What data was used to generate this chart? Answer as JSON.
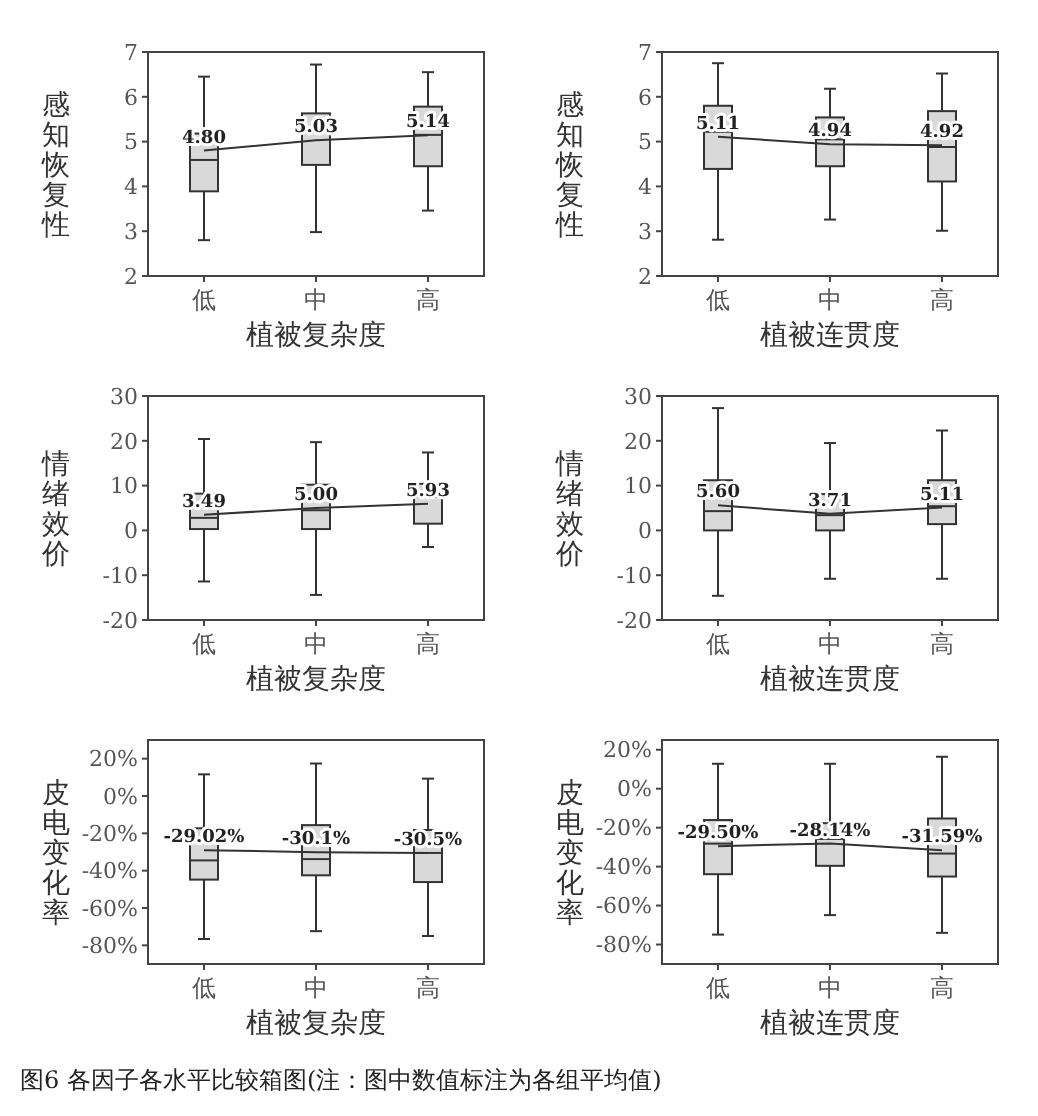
{
  "chart_data": [
    {
      "type": "box",
      "xlabel": "植被复杂度",
      "ylabel": "感知恢复性",
      "categories": [
        "低",
        "中",
        "高"
      ],
      "ylim": [
        2,
        7
      ],
      "yticks": [
        2,
        3,
        4,
        5,
        6,
        7
      ],
      "grid": false,
      "boxes": [
        {
          "low": 2.8,
          "q1": 3.89,
          "median": 4.59,
          "q3": 5.18,
          "high": 6.45
        },
        {
          "low": 2.98,
          "q1": 4.48,
          "median": 5.22,
          "q3": 5.63,
          "high": 6.72
        },
        {
          "low": 3.46,
          "q1": 4.45,
          "median": 5.15,
          "q3": 5.78,
          "high": 6.55
        }
      ],
      "series": [
        {
          "type": "line",
          "color": "#333333",
          "values": [
            4.8,
            5.03,
            5.14
          ],
          "value_labels": [
            "4.80",
            "5.03",
            "5.14"
          ]
        }
      ]
    },
    {
      "type": "box",
      "xlabel": "植被连贯度",
      "ylabel": "感知恢复性",
      "categories": [
        "低",
        "中",
        "高"
      ],
      "ylim": [
        2,
        7
      ],
      "yticks": [
        2,
        3,
        4,
        5,
        6,
        7
      ],
      "grid": false,
      "boxes": [
        {
          "low": 2.81,
          "q1": 4.39,
          "median": 5.22,
          "q3": 5.8,
          "high": 6.75
        },
        {
          "low": 3.26,
          "q1": 4.45,
          "median": 5.05,
          "q3": 5.54,
          "high": 6.18
        },
        {
          "low": 3.01,
          "q1": 4.11,
          "median": 4.88,
          "q3": 5.68,
          "high": 6.52
        }
      ],
      "series": [
        {
          "type": "line",
          "color": "#333333",
          "values": [
            5.11,
            4.94,
            4.92
          ],
          "value_labels": [
            "5.11",
            "4.94",
            "4.92"
          ]
        }
      ]
    },
    {
      "type": "box",
      "xlabel": "植被复杂度",
      "ylabel": "情绪效价",
      "categories": [
        "低",
        "中",
        "高"
      ],
      "ylim": [
        -20,
        30
      ],
      "yticks": [
        -20,
        -10,
        0,
        10,
        20,
        30
      ],
      "grid": false,
      "boxes": [
        {
          "low": -11.4,
          "q1": 0.3,
          "median": 2.8,
          "q3": 8.2,
          "high": 20.4
        },
        {
          "low": -14.4,
          "q1": 0.3,
          "median": 4.5,
          "q3": 10.2,
          "high": 19.7
        },
        {
          "low": -3.7,
          "q1": 1.5,
          "median": 7.5,
          "q3": 10.4,
          "high": 17.4
        }
      ],
      "series": [
        {
          "type": "line",
          "color": "#333333",
          "values": [
            3.49,
            5.0,
            5.93
          ],
          "value_labels": [
            "3.49",
            "5.00",
            "5.93"
          ]
        }
      ]
    },
    {
      "type": "box",
      "xlabel": "植被连贯度",
      "ylabel": "情绪效价",
      "categories": [
        "低",
        "中",
        "高"
      ],
      "ylim": [
        -20,
        30
      ],
      "yticks": [
        -20,
        -10,
        0,
        10,
        20,
        30
      ],
      "grid": false,
      "boxes": [
        {
          "low": -14.6,
          "q1": 0,
          "median": 4.3,
          "q3": 11.2,
          "high": 27.3
        },
        {
          "low": -10.8,
          "q1": 0,
          "median": 3.4,
          "q3": 8.1,
          "high": 19.5
        },
        {
          "low": -10.8,
          "q1": 1.4,
          "median": 5.4,
          "q3": 11.2,
          "high": 22.3
        }
      ],
      "series": [
        {
          "type": "line",
          "color": "#333333",
          "values": [
            5.6,
            3.71,
            5.11
          ],
          "value_labels": [
            "5.60",
            "3.71",
            "5.11"
          ]
        }
      ]
    },
    {
      "type": "box",
      "xlabel": "植被复杂度",
      "ylabel": "皮电变化率",
      "categories": [
        "低",
        "中",
        "高"
      ],
      "ylim": [
        -90,
        30
      ],
      "yticks": [
        {
          "value": -80,
          "label": "-80%"
        },
        {
          "value": -60,
          "label": "-60%"
        },
        {
          "value": -40,
          "label": "-40%"
        },
        {
          "value": -20,
          "label": "-20%"
        },
        {
          "value": 0,
          "label": "0%"
        },
        {
          "value": 20,
          "label": "20%"
        }
      ],
      "grid": false,
      "boxes": [
        {
          "low": -76.6,
          "q1": -44.8,
          "median": -34.5,
          "q3": -17.3,
          "high": 11.6
        },
        {
          "low": -72.4,
          "q1": -42.5,
          "median": -33.8,
          "q3": -15.6,
          "high": 17.4
        },
        {
          "low": -75,
          "q1": -46.1,
          "median": -30.5,
          "q3": -18.2,
          "high": 9.3
        }
      ],
      "series": [
        {
          "type": "line",
          "color": "#333333",
          "values": [
            -29.02,
            -30.1,
            -30.5
          ],
          "value_labels": [
            "-29.02%",
            "-30.1%",
            "-30.5%"
          ]
        }
      ]
    },
    {
      "type": "box",
      "xlabel": "植被连贯度",
      "ylabel": "皮电变化率",
      "categories": [
        "低",
        "中",
        "高"
      ],
      "ylim": [
        -90,
        25
      ],
      "yticks": [
        {
          "value": -80,
          "label": "-80%"
        },
        {
          "value": -60,
          "label": "-60%"
        },
        {
          "value": -40,
          "label": "-40%"
        },
        {
          "value": -20,
          "label": "-20%"
        },
        {
          "value": 0,
          "label": "0%"
        },
        {
          "value": 20,
          "label": "20%"
        }
      ],
      "grid": false,
      "boxes": [
        {
          "low": -74.9,
          "q1": -43.9,
          "median": -28.2,
          "q3": -16.1,
          "high": 12.8
        },
        {
          "low": -64.9,
          "q1": -39.6,
          "median": -25.8,
          "q3": -17.7,
          "high": 12.8
        },
        {
          "low": -74,
          "q1": -45.1,
          "median": -33.3,
          "q3": -15.3,
          "high": 16.4
        }
      ],
      "series": [
        {
          "type": "line",
          "color": "#333333",
          "values": [
            -29.5,
            -28.14,
            -31.59
          ],
          "value_labels": [
            "-29.50%",
            "-28.14%",
            "-31.59%"
          ]
        }
      ],
      "annotations": [
        "图6 各因子各水平比较箱图(注：图中数值标注为各组平均值)"
      ]
    }
  ]
}
